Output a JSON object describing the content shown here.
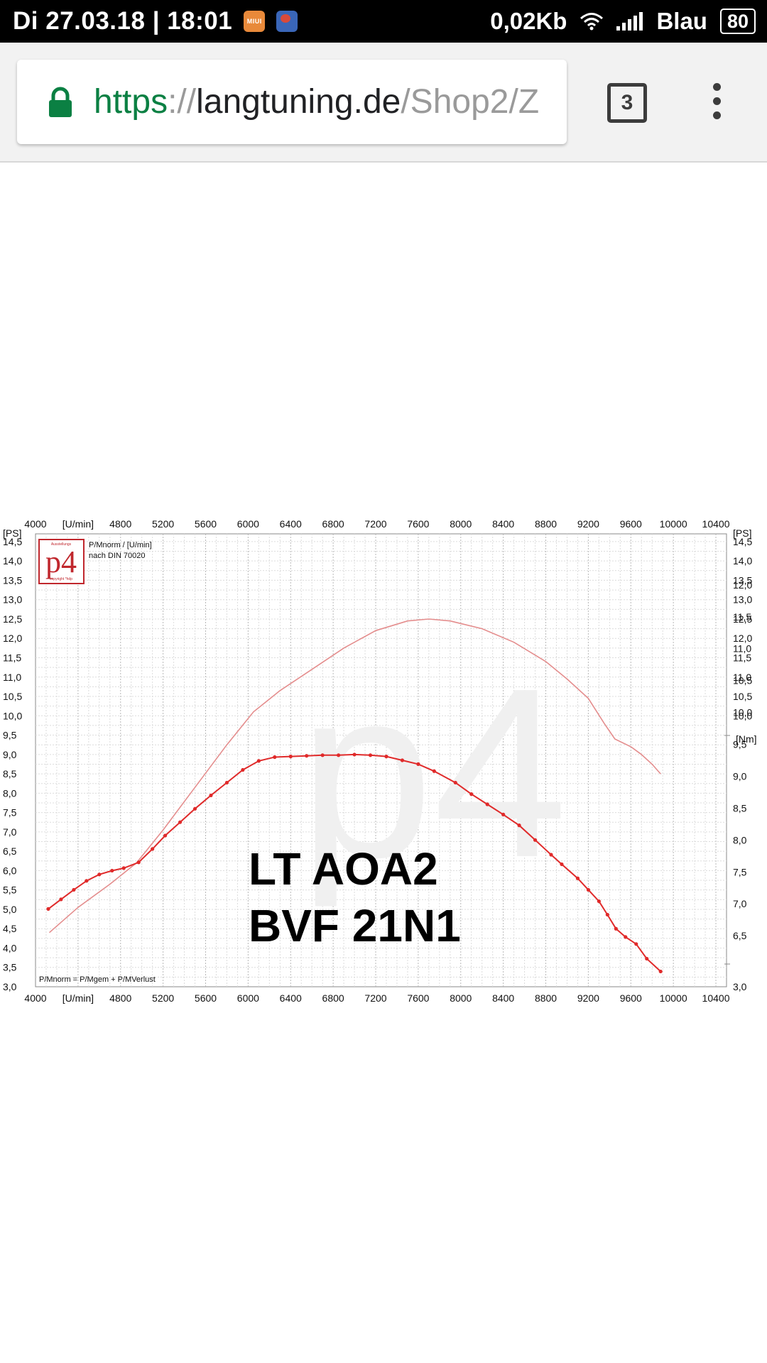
{
  "status_bar": {
    "datetime": "Di 27.03.18 | 18:01",
    "notification_icons": [
      "miui-notification-icon",
      "globe-app-icon"
    ],
    "notification_mi_label": "MIUI",
    "data_rate": "0,02Kb",
    "carrier": "Blau",
    "battery": "80"
  },
  "browser": {
    "url_scheme": "https",
    "url_separator": "://",
    "url_host": "langtuning.de",
    "url_path": "/Shop2/Z",
    "tab_count": "3",
    "colors": {
      "secure": "#0b8043",
      "icons": "#3c3c3c"
    }
  },
  "chart_data": {
    "type": "line",
    "x_unit": "[U/min]",
    "y_left_unit": "[PS]",
    "y_right_unit": "[Nm]",
    "x_ticks": [
      "4000",
      "4800",
      "5200",
      "5600",
      "6000",
      "6400",
      "6800",
      "7200",
      "7600",
      "8000",
      "8400",
      "8800",
      "9200",
      "9600",
      "10000",
      "10400"
    ],
    "y_left_ticks": [
      "14,5",
      "14,0",
      "13,5",
      "13,0",
      "12,5",
      "12,0",
      "11,5",
      "11,0",
      "10,5",
      "10,0",
      "9,5",
      "9,0",
      "8,5",
      "8,0",
      "7,5",
      "7,0",
      "6,5",
      "6,0",
      "5,5",
      "5,0",
      "4,5",
      "4,0",
      "3,5",
      "3,0"
    ],
    "y_left_values": [
      14.5,
      14.0,
      13.5,
      13.0,
      12.5,
      12.0,
      11.5,
      11.0,
      10.5,
      10.0,
      9.5,
      9.0,
      8.5,
      8.0,
      7.5,
      7.0,
      6.5,
      6.0,
      5.5,
      5.0,
      4.5,
      4.0,
      3.5,
      3.0
    ],
    "y_right_ps_ticks": [
      "14,5",
      "14,0",
      "13,5",
      "13,0",
      "12,5",
      "12,0",
      "11,5",
      "11,0",
      "10,5",
      "10,0"
    ],
    "y_right_ps_values": [
      14.5,
      14.0,
      13.5,
      13.0,
      12.5,
      12.0,
      11.5,
      11.0,
      10.5,
      10.0
    ],
    "y_right_nm_ticks": [
      "12,0",
      "11,5",
      "11,0",
      "10,5",
      "10,0",
      "9,5",
      "9,0",
      "8,5",
      "8,0",
      "7,5",
      "7,0",
      "6,5"
    ],
    "y_right_nm_values": [
      12.0,
      11.5,
      11.0,
      10.5,
      10.0,
      9.5,
      9.0,
      8.5,
      8.0,
      7.5,
      7.0,
      6.5
    ],
    "y_right_bottom": "3,0",
    "xlim": [
      4000,
      10500
    ],
    "ylim_ps": [
      3.0,
      14.7
    ],
    "ylim_nm": [
      5.7,
      12.8
    ],
    "grid": true,
    "legend_text": [
      "P/Mnorm / [U/min]",
      "nach DIN 70020"
    ],
    "footnote": "P/Mnorm = P/Mgem + P/MVerlust",
    "logo": {
      "text": "p4",
      "small_top": "Ausstellungs",
      "small_bottom": "copyright *hdp"
    },
    "watermark": "p4",
    "annotation": [
      "LT AOA2",
      "BVF 21N1"
    ],
    "series": [
      {
        "axis": "PS",
        "color": "#e48d8d",
        "markers": false,
        "x": [
          4130,
          4400,
          4700,
          4950,
          5200,
          5500,
          5800,
          6050,
          6300,
          6600,
          6900,
          7200,
          7500,
          7700,
          7900,
          8200,
          8500,
          8800,
          9000,
          9200,
          9350,
          9450,
          9600,
          9700,
          9800,
          9880
        ],
        "y": [
          4.4,
          5.05,
          5.65,
          6.2,
          7.05,
          8.15,
          9.25,
          10.1,
          10.65,
          11.2,
          11.75,
          12.2,
          12.45,
          12.5,
          12.45,
          12.25,
          11.9,
          11.4,
          10.95,
          10.45,
          9.8,
          9.4,
          9.2,
          9.0,
          8.75,
          8.5
        ]
      },
      {
        "axis": "Nm",
        "color": "#e02a2a",
        "markers": true,
        "x": [
          4120,
          4240,
          4360,
          4480,
          4600,
          4720,
          4830,
          4970,
          5100,
          5220,
          5360,
          5500,
          5650,
          5800,
          5950,
          6100,
          6250,
          6400,
          6550,
          6700,
          6850,
          7000,
          7150,
          7300,
          7450,
          7600,
          7750,
          7950,
          8100,
          8250,
          8400,
          8550,
          8700,
          8850,
          8950,
          9100,
          9200,
          9300,
          9380,
          9460,
          9550,
          9650,
          9750,
          9880
        ],
        "y": [
          6.92,
          7.07,
          7.22,
          7.36,
          7.46,
          7.52,
          7.56,
          7.65,
          7.86,
          8.07,
          8.28,
          8.49,
          8.7,
          8.9,
          9.1,
          9.24,
          9.3,
          9.31,
          9.32,
          9.33,
          9.33,
          9.34,
          9.33,
          9.31,
          9.25,
          9.19,
          9.08,
          8.9,
          8.72,
          8.56,
          8.4,
          8.23,
          8.0,
          7.77,
          7.62,
          7.4,
          7.22,
          7.04,
          6.83,
          6.61,
          6.48,
          6.37,
          6.14,
          5.94
        ]
      }
    ]
  }
}
